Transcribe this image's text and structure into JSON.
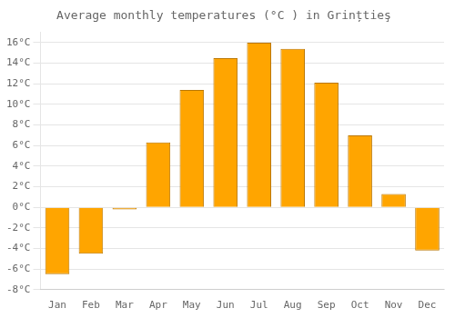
{
  "chart_data": {
    "type": "bar",
    "title": "Average monthly temperatures (°C ) in Grințtieş",
    "categories": [
      "Jan",
      "Feb",
      "Mar",
      "Apr",
      "May",
      "Jun",
      "Jul",
      "Aug",
      "Sep",
      "Oct",
      "Nov",
      "Dec"
    ],
    "values": [
      -6.5,
      -4.5,
      -0.2,
      6.3,
      11.4,
      14.5,
      16.0,
      15.4,
      12.1,
      7.0,
      1.3,
      -4.2
    ],
    "color": "#FFA500",
    "ylim": [
      -8,
      17
    ],
    "yticks": [
      {
        "value": -8,
        "label": "-8°C"
      },
      {
        "value": -6,
        "label": "-6°C"
      },
      {
        "value": -4,
        "label": "-4°C"
      },
      {
        "value": -2,
        "label": "-2°C"
      },
      {
        "value": 0,
        "label": "0°C"
      },
      {
        "value": 2,
        "label": "2°C"
      },
      {
        "value": 4,
        "label": "4°C"
      },
      {
        "value": 6,
        "label": "6°C"
      },
      {
        "value": 8,
        "label": "8°C"
      },
      {
        "value": 10,
        "label": "10°C"
      },
      {
        "value": 12,
        "label": "12°C"
      },
      {
        "value": 14,
        "label": "14°C"
      },
      {
        "value": 16,
        "label": "16°C"
      }
    ],
    "grid": true
  }
}
